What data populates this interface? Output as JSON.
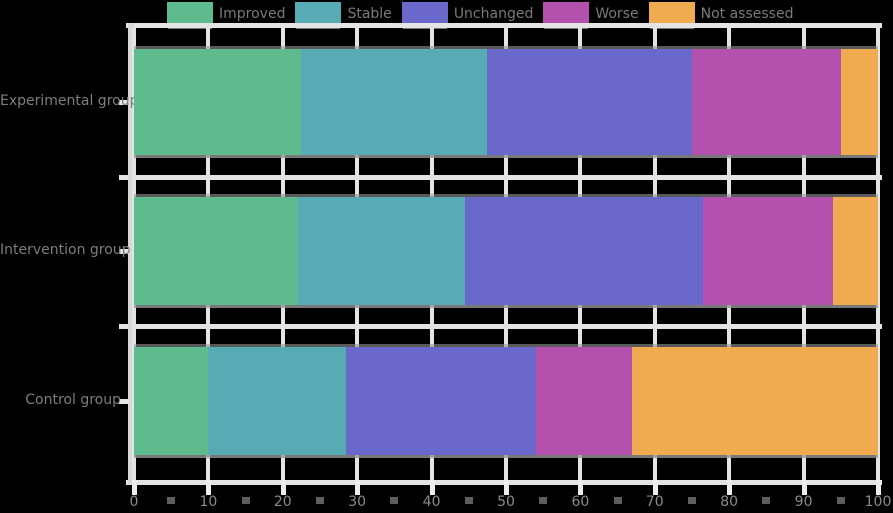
{
  "chart_data": {
    "type": "bar",
    "orientation": "horizontal",
    "stacked": true,
    "title": "",
    "xlabel": "",
    "ylabel": "",
    "xlim": [
      0,
      100
    ],
    "xticks": [
      0,
      10,
      20,
      30,
      40,
      50,
      60,
      70,
      80,
      90,
      100
    ],
    "grid": "vertical white gridlines, white frame, minor gray ticks at 5-unit midpoints",
    "legend_position": "top",
    "categories": [
      "Experimental group",
      "Intervention group",
      "Control group"
    ],
    "series": [
      {
        "name": "Improved",
        "color": "#5dbb8d",
        "values": [
          22.5,
          22.0,
          10.0
        ]
      },
      {
        "name": "Stable",
        "color": "#57abb4",
        "values": [
          25.0,
          22.5,
          18.5
        ]
      },
      {
        "name": "Unchanged",
        "color": "#6b68cb",
        "values": [
          27.5,
          32.0,
          25.5
        ]
      },
      {
        "name": "Worse",
        "color": "#b451af",
        "values": [
          20.0,
          17.5,
          13.0
        ]
      },
      {
        "name": "Not assessed",
        "color": "#f0aa50",
        "values": [
          5.0,
          6.0,
          33.0
        ]
      }
    ]
  },
  "colors": {
    "background": "#000000",
    "frame": "#e4e4e4",
    "left_spine": "#d8d8d8",
    "major_tick": "#ededed",
    "minor_tick": "#5e5e5e",
    "x_tick_label_text": "#8a8a8a",
    "y_label_text": "#7d7d7d",
    "legend_text": "#7a7a7a"
  }
}
